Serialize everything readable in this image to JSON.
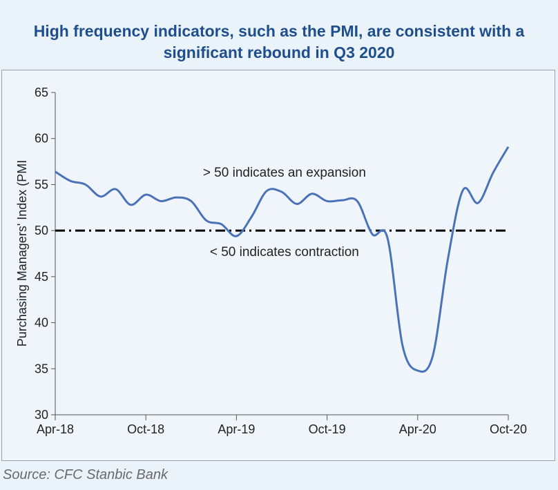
{
  "title_line1": "High frequency indicators, such as the PMI, are consistent with a",
  "title_line2": "significant rebound in Q3 2020",
  "source": "Source: CFC Stanbic Bank",
  "colors": {
    "title": "#1f4e8c",
    "line": "#4a72b8",
    "reference": "#000000",
    "background": "#eaf2fa"
  },
  "chart_data": {
    "type": "line",
    "title": "High frequency indicators, such as the PMI, are consistent with a significant rebound in Q3 2020",
    "ylabel": "Purchasing Managers' Index (PMI",
    "xlabel": "",
    "ylim": [
      30,
      65
    ],
    "yticks": [
      30,
      35,
      40,
      45,
      50,
      55,
      60,
      65
    ],
    "xlim": [
      "2018-04",
      "2020-10"
    ],
    "xtick_labels": [
      "Apr-18",
      "Oct-18",
      "Apr-19",
      "Oct-19",
      "Apr-20",
      "Oct-20"
    ],
    "grid": false,
    "series": [
      {
        "x": [
          "2018-04",
          "2018-05",
          "2018-06",
          "2018-07",
          "2018-08",
          "2018-09",
          "2018-10",
          "2018-11",
          "2018-12",
          "2019-01",
          "2019-02",
          "2019-03",
          "2019-04",
          "2019-05",
          "2019-06",
          "2019-07",
          "2019-08",
          "2019-09",
          "2019-10",
          "2019-11",
          "2019-12",
          "2019-13",
          "2020-02",
          "2020-03",
          "2020-04",
          "2020-05",
          "2020-06",
          "2020-07",
          "2020-08",
          "2020-09",
          "2020-10"
        ],
        "values": [
          56.4,
          55.4,
          55.0,
          53.7,
          54.5,
          52.8,
          53.9,
          53.2,
          53.6,
          53.2,
          51.1,
          50.7,
          49.4,
          51.5,
          54.3,
          54.2,
          52.9,
          54.0,
          53.2,
          53.3,
          53.2,
          49.6,
          49.2,
          37.5,
          34.8,
          36.4,
          46.9,
          54.4,
          53.0,
          56.3,
          59.1
        ]
      }
    ],
    "reference_line": {
      "y": 50,
      "style": "dash-dot"
    },
    "annotations": [
      {
        "text": "> 50 indicates an expansion",
        "x": "2019-08",
        "y": 56.3
      },
      {
        "text": "< 50 indicates contraction",
        "x": "2019-08",
        "y": 47.7
      }
    ]
  }
}
